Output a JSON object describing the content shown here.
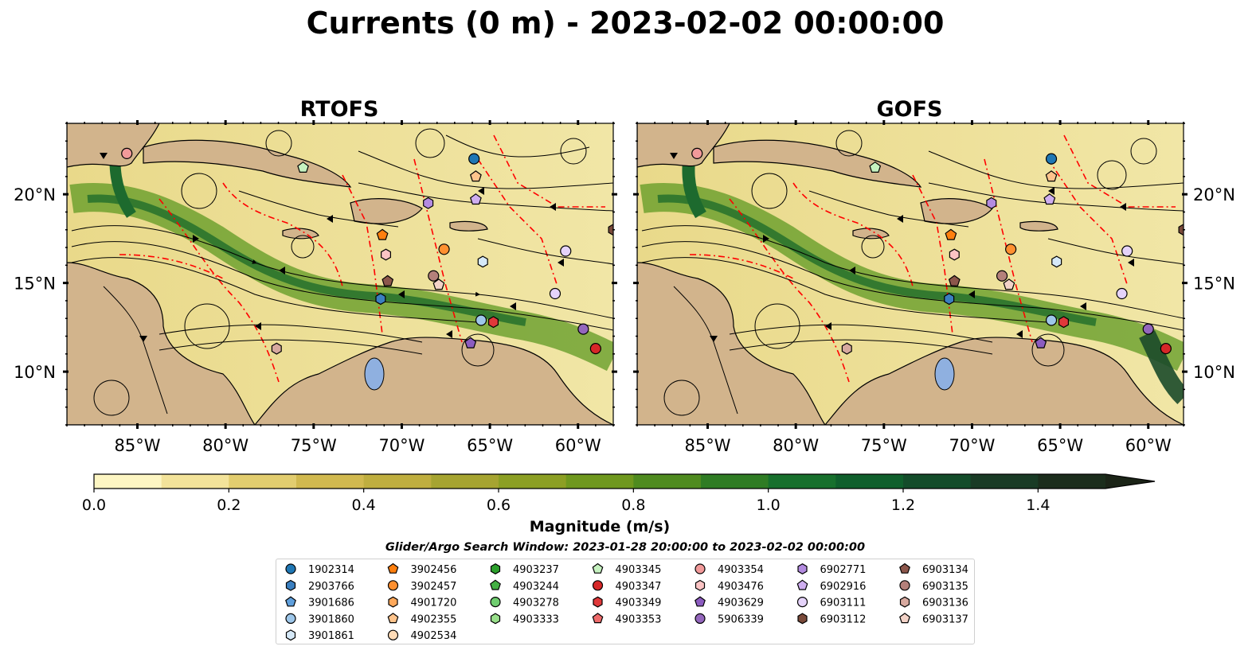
{
  "title": "Currents (0 m) - 2023-02-02 00:00:00",
  "panels": [
    {
      "name": "RTOFS"
    },
    {
      "name": "GOFS"
    }
  ],
  "map": {
    "lon_range": [
      -89,
      -58
    ],
    "lat_range": [
      7,
      24
    ],
    "x_ticks": [
      "85°W",
      "80°W",
      "75°W",
      "70°W",
      "65°W",
      "60°W"
    ],
    "y_ticks": [
      "20°N",
      "15°N",
      "10°N"
    ]
  },
  "colorbar": {
    "label": "Magnitude (m/s)",
    "ticks": [
      "0.0",
      "0.2",
      "0.4",
      "0.6",
      "0.8",
      "1.0",
      "1.2",
      "1.4"
    ],
    "range": [
      0,
      1.5
    ],
    "extend": "max",
    "colors": [
      "#fdf6c3",
      "#f3e39a",
      "#e2cd6f",
      "#d1b94f",
      "#bfae3f",
      "#a6a431",
      "#8c9f24",
      "#6f981e",
      "#4f8b1f",
      "#2f7c24",
      "#17702d",
      "#0f5f2c",
      "#134c2a",
      "#193b25",
      "#1b2d1c"
    ]
  },
  "search_window": "Glider/Argo Search Window: 2023-01-28 20:00:00 to 2023-02-02 00:00:00",
  "colors": {
    "land": "#d2b48c",
    "water_line": "#8aa8c8",
    "boundary": "#ff0000",
    "streamline": "#000000"
  },
  "legend": [
    {
      "id": "1902314",
      "marker": "circle",
      "color": "#1f77b4"
    },
    {
      "id": "2903766",
      "marker": "hexagon",
      "color": "#3a7fc0"
    },
    {
      "id": "3901686",
      "marker": "pentagon",
      "color": "#5f9fdc"
    },
    {
      "id": "3901860",
      "marker": "circle",
      "color": "#9ec7ea"
    },
    {
      "id": "3901861",
      "marker": "hexagon",
      "color": "#d6e9f8"
    },
    {
      "id": "3902456",
      "marker": "pentagon",
      "color": "#ff7f0e"
    },
    {
      "id": "3902457",
      "marker": "circle",
      "color": "#ff9030"
    },
    {
      "id": "4901720",
      "marker": "hexagon",
      "color": "#ffa85a"
    },
    {
      "id": "4902355",
      "marker": "pentagon",
      "color": "#ffc48c"
    },
    {
      "id": "4902534",
      "marker": "circle",
      "color": "#ffdcb8"
    },
    {
      "id": "4903237",
      "marker": "hexagon",
      "color": "#2ca02c"
    },
    {
      "id": "4903244",
      "marker": "pentagon",
      "color": "#44b044"
    },
    {
      "id": "4903278",
      "marker": "circle",
      "color": "#6fcd6f"
    },
    {
      "id": "4903333",
      "marker": "hexagon",
      "color": "#98df8a"
    },
    {
      "id": "4903345",
      "marker": "pentagon",
      "color": "#c6f2c0"
    },
    {
      "id": "4903347",
      "marker": "circle",
      "color": "#d62728"
    },
    {
      "id": "4903349",
      "marker": "hexagon",
      "color": "#e0393a"
    },
    {
      "id": "4903353",
      "marker": "pentagon",
      "color": "#ee6b6b"
    },
    {
      "id": "4903354",
      "marker": "circle",
      "color": "#f29a9a"
    },
    {
      "id": "4903476",
      "marker": "hexagon",
      "color": "#fbc4c4"
    },
    {
      "id": "4903629",
      "marker": "pentagon",
      "color": "#8c5cc0"
    },
    {
      "id": "5906339",
      "marker": "circle",
      "color": "#9467bd"
    },
    {
      "id": "6902771",
      "marker": "hexagon",
      "color": "#b38be0"
    },
    {
      "id": "6902916",
      "marker": "pentagon",
      "color": "#cfaef0"
    },
    {
      "id": "6903111",
      "marker": "circle",
      "color": "#e5d3fa"
    },
    {
      "id": "6903112",
      "marker": "hexagon",
      "color": "#7a4a3a"
    },
    {
      "id": "6903134",
      "marker": "pentagon",
      "color": "#8c564b"
    },
    {
      "id": "6903135",
      "marker": "circle",
      "color": "#b4807a"
    },
    {
      "id": "6903136",
      "marker": "hexagon",
      "color": "#d7a99f"
    },
    {
      "id": "6903137",
      "marker": "pentagon",
      "color": "#f3d3c8"
    }
  ],
  "floats": {
    "RTOFS": [
      {
        "id": "4903354",
        "lon": -85.6,
        "lat": 22.3
      },
      {
        "id": "1902314",
        "lon": -65.9,
        "lat": 22.0
      },
      {
        "id": "4903345",
        "lon": -75.6,
        "lat": 21.5
      },
      {
        "id": "4902355",
        "lon": -65.8,
        "lat": 21.0
      },
      {
        "id": "6902916",
        "lon": -65.8,
        "lat": 19.7
      },
      {
        "id": "6902771",
        "lon": -68.5,
        "lat": 19.5
      },
      {
        "id": "3902456",
        "lon": -71.1,
        "lat": 17.7
      },
      {
        "id": "3902457",
        "lon": -67.6,
        "lat": 16.9
      },
      {
        "id": "4903476",
        "lon": -70.9,
        "lat": 16.6
      },
      {
        "id": "6903111",
        "lon": -60.7,
        "lat": 16.8
      },
      {
        "id": "3901861",
        "lon": -65.4,
        "lat": 16.2
      },
      {
        "id": "6903112",
        "lon": -58.0,
        "lat": 18.0
      },
      {
        "id": "6903134",
        "lon": -70.8,
        "lat": 15.1
      },
      {
        "id": "6903135",
        "lon": -68.2,
        "lat": 15.4
      },
      {
        "id": "6903137",
        "lon": -67.9,
        "lat": 14.9
      },
      {
        "id": "2903766",
        "lon": -71.2,
        "lat": 14.1
      },
      {
        "id": "6903111",
        "lon": -61.3,
        "lat": 14.4
      },
      {
        "id": "3901860",
        "lon": -65.5,
        "lat": 12.9
      },
      {
        "id": "4903349",
        "lon": -64.8,
        "lat": 12.8
      },
      {
        "id": "5906339",
        "lon": -59.7,
        "lat": 12.4
      },
      {
        "id": "4903629",
        "lon": -66.1,
        "lat": 11.6
      },
      {
        "id": "4903347",
        "lon": -59.0,
        "lat": 11.3
      },
      {
        "id": "6903136",
        "lon": -77.1,
        "lat": 11.3
      }
    ],
    "GOFS": [
      {
        "id": "4903354",
        "lon": -85.6,
        "lat": 22.3
      },
      {
        "id": "1902314",
        "lon": -65.5,
        "lat": 22.0
      },
      {
        "id": "4903345",
        "lon": -75.5,
        "lat": 21.5
      },
      {
        "id": "4902355",
        "lon": -65.5,
        "lat": 21.0
      },
      {
        "id": "6902916",
        "lon": -65.6,
        "lat": 19.7
      },
      {
        "id": "6902771",
        "lon": -68.9,
        "lat": 19.5
      },
      {
        "id": "3902456",
        "lon": -71.2,
        "lat": 17.7
      },
      {
        "id": "3902457",
        "lon": -67.8,
        "lat": 16.9
      },
      {
        "id": "4903476",
        "lon": -71.0,
        "lat": 16.6
      },
      {
        "id": "6903111",
        "lon": -61.2,
        "lat": 16.8
      },
      {
        "id": "3901861",
        "lon": -65.2,
        "lat": 16.2
      },
      {
        "id": "6903112",
        "lon": -58.0,
        "lat": 18.0
      },
      {
        "id": "6903134",
        "lon": -71.0,
        "lat": 15.1
      },
      {
        "id": "6903135",
        "lon": -68.3,
        "lat": 15.4
      },
      {
        "id": "6903137",
        "lon": -67.9,
        "lat": 14.9
      },
      {
        "id": "2903766",
        "lon": -71.3,
        "lat": 14.1
      },
      {
        "id": "6903111",
        "lon": -61.5,
        "lat": 14.4
      },
      {
        "id": "3901860",
        "lon": -65.5,
        "lat": 12.9
      },
      {
        "id": "4903349",
        "lon": -64.8,
        "lat": 12.8
      },
      {
        "id": "5906339",
        "lon": -60.0,
        "lat": 12.4
      },
      {
        "id": "4903629",
        "lon": -66.1,
        "lat": 11.6
      },
      {
        "id": "4903347",
        "lon": -59.0,
        "lat": 11.3
      },
      {
        "id": "6903136",
        "lon": -77.1,
        "lat": 11.3
      }
    ]
  }
}
